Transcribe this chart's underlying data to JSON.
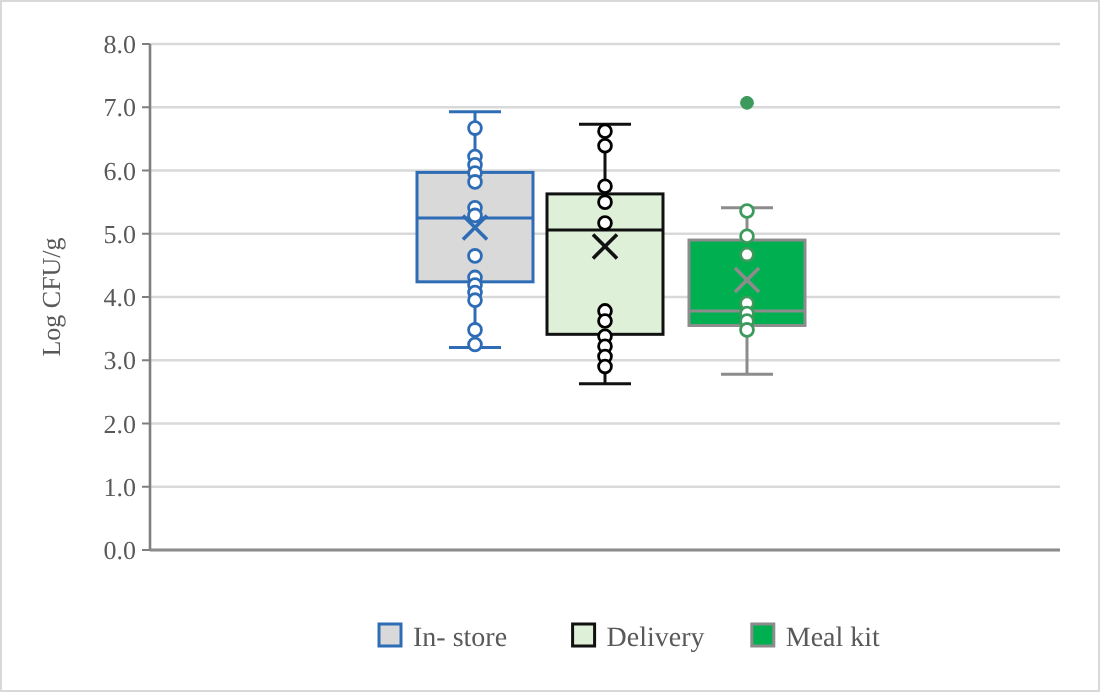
{
  "chart_data": {
    "type": "box",
    "ylabel": "Log CFU/g",
    "categories": [
      null
    ],
    "ylim": [
      0,
      8
    ],
    "yticks": [
      {
        "value": 0,
        "label": "0.0"
      },
      {
        "value": 1,
        "label": "1.0"
      },
      {
        "value": 2,
        "label": "2.0"
      },
      {
        "value": 3,
        "label": "3.0"
      },
      {
        "value": 4,
        "label": "4.0"
      },
      {
        "value": 5,
        "label": "5.0"
      },
      {
        "value": 6,
        "label": "6.0"
      },
      {
        "value": 7,
        "label": "7.0"
      },
      {
        "value": 8,
        "label": "8.0"
      }
    ],
    "grid": "y",
    "legend": "bottom",
    "series": [
      {
        "name": "In- store",
        "color": "#d9d9d9",
        "boxes": [
          {
            "low": 3.2,
            "q1": 4.24,
            "median": 5.25,
            "q3": 5.97,
            "high": 6.93,
            "mean": 5.1,
            "outliers": [
              6.67,
              6.22,
              6.09,
              5.96,
              5.82,
              5.41,
              5.29,
              4.65,
              4.31,
              4.19,
              4.07,
              3.95,
              3.48,
              3.25
            ]
          }
        ]
      },
      {
        "name": "Delivery",
        "color": "#dff0d8",
        "boxes": [
          {
            "low": 2.63,
            "q1": 3.41,
            "median": 5.06,
            "q3": 5.63,
            "high": 6.73,
            "mean": 4.8,
            "outliers": [
              6.62,
              6.39,
              5.75,
              5.5,
              5.17,
              3.78,
              3.62,
              3.38,
              3.22,
              3.06,
              2.9
            ]
          }
        ]
      },
      {
        "name": "Meal kit",
        "color": "#00b050",
        "boxes": [
          {
            "low": 2.78,
            "q1": 3.55,
            "median": 3.78,
            "q3": 4.9,
            "high": 5.41,
            "mean": 4.27,
            "outliers": [
              7.07,
              5.36,
              4.96,
              4.67,
              3.9,
              3.74,
              3.62,
              3.48
            ]
          }
        ]
      }
    ]
  }
}
